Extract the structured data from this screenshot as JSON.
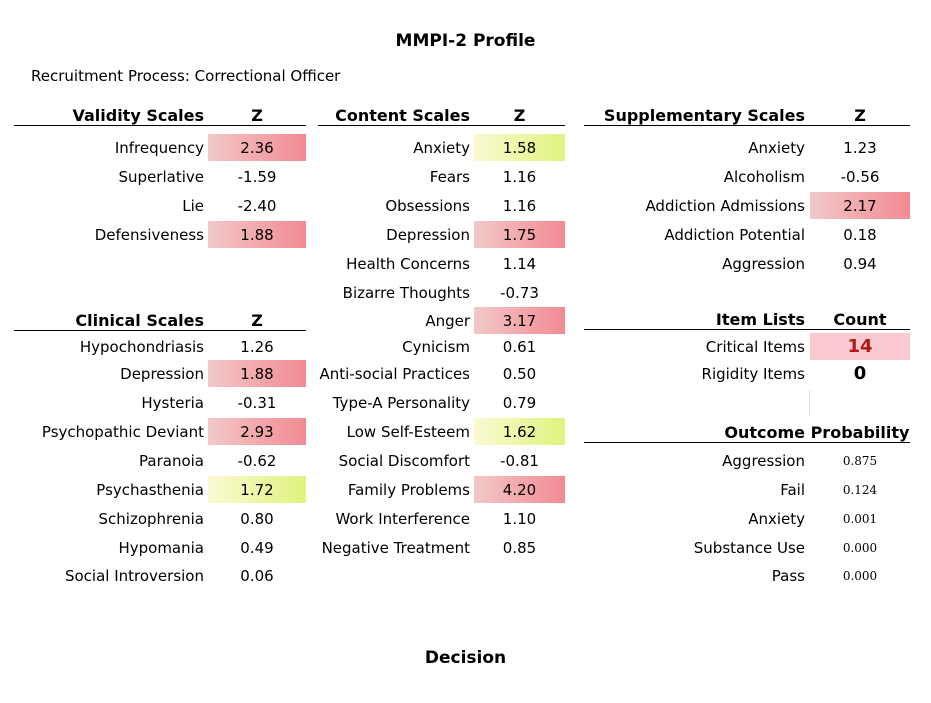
{
  "title": "MMPI-2 Profile",
  "subtitle": "Recruitment Process:  Correctional Officer",
  "validity": {
    "header": "Validity Scales",
    "col": "Z",
    "rows": [
      {
        "label": "Infrequency",
        "value": "2.36",
        "hl": "red"
      },
      {
        "label": "Superlative",
        "value": "-1.59",
        "hl": ""
      },
      {
        "label": "Lie",
        "value": "-2.40",
        "hl": ""
      },
      {
        "label": "Defensiveness",
        "value": "1.88",
        "hl": "red"
      }
    ]
  },
  "clinical": {
    "header": "Clinical Scales",
    "col": "Z",
    "rows": [
      {
        "label": "Hypochondriasis",
        "value": "1.26",
        "hl": ""
      },
      {
        "label": "Depression",
        "value": "1.88",
        "hl": "red"
      },
      {
        "label": "Hysteria",
        "value": "-0.31",
        "hl": ""
      },
      {
        "label": "Psychopathic Deviant",
        "value": "2.93",
        "hl": "red"
      },
      {
        "label": "Paranoia",
        "value": "-0.62",
        "hl": ""
      },
      {
        "label": "Psychasthenia",
        "value": "1.72",
        "hl": "yel"
      },
      {
        "label": "Schizophrenia",
        "value": "0.80",
        "hl": ""
      },
      {
        "label": "Hypomania",
        "value": "0.49",
        "hl": ""
      },
      {
        "label": "Social Introversion",
        "value": "0.06",
        "hl": ""
      }
    ]
  },
  "content": {
    "header": "Content Scales",
    "col": "Z",
    "rows": [
      {
        "label": "Anxiety",
        "value": "1.58",
        "hl": "yel"
      },
      {
        "label": "Fears",
        "value": "1.16",
        "hl": ""
      },
      {
        "label": "Obsessions",
        "value": "1.16",
        "hl": ""
      },
      {
        "label": "Depression",
        "value": "1.75",
        "hl": "red"
      },
      {
        "label": "Health Concerns",
        "value": "1.14",
        "hl": ""
      },
      {
        "label": "Bizarre Thoughts",
        "value": "-0.73",
        "hl": ""
      },
      {
        "label": "Anger",
        "value": "3.17",
        "hl": "red"
      },
      {
        "label": "Cynicism",
        "value": "0.61",
        "hl": ""
      },
      {
        "label": "Anti-social Practices",
        "value": "0.50",
        "hl": ""
      },
      {
        "label": "Type-A Personality",
        "value": "0.79",
        "hl": ""
      },
      {
        "label": "Low Self-Esteem",
        "value": "1.62",
        "hl": "yel"
      },
      {
        "label": "Social Discomfort",
        "value": "-0.81",
        "hl": ""
      },
      {
        "label": "Family Problems",
        "value": "4.20",
        "hl": "red"
      },
      {
        "label": "Work Interference",
        "value": "1.10",
        "hl": ""
      },
      {
        "label": "Negative Treatment",
        "value": "0.85",
        "hl": ""
      }
    ]
  },
  "supplementary": {
    "header": "Supplementary Scales",
    "col": "Z",
    "rows": [
      {
        "label": "Anxiety",
        "value": "1.23",
        "hl": ""
      },
      {
        "label": "Alcoholism",
        "value": "-0.56",
        "hl": ""
      },
      {
        "label": "Addiction Admissions",
        "value": "2.17",
        "hl": "red"
      },
      {
        "label": "Addiction Potential",
        "value": "0.18",
        "hl": ""
      },
      {
        "label": "Aggression",
        "value": "0.94",
        "hl": ""
      }
    ]
  },
  "items": {
    "header": "Item Lists",
    "col": "Count",
    "rows": [
      {
        "label": "Critical Items",
        "value": "14",
        "hl": "pink"
      },
      {
        "label": "Rigidity Items",
        "value": "0",
        "hl": ""
      }
    ]
  },
  "outcome": {
    "header": "Outcome",
    "col": "Probability",
    "rows": [
      {
        "label": "Aggression",
        "value": "0.875"
      },
      {
        "label": "Fail",
        "value": "0.124"
      },
      {
        "label": "Anxiety",
        "value": "0.001"
      },
      {
        "label": "Substance Use",
        "value": "0.000"
      },
      {
        "label": "Pass",
        "value": "0.000"
      }
    ]
  },
  "decision": "Decision",
  "colors": {
    "red_highlight": "#f28a93",
    "yellow_highlight": "#e0f27e",
    "count_red": "#b01818"
  }
}
